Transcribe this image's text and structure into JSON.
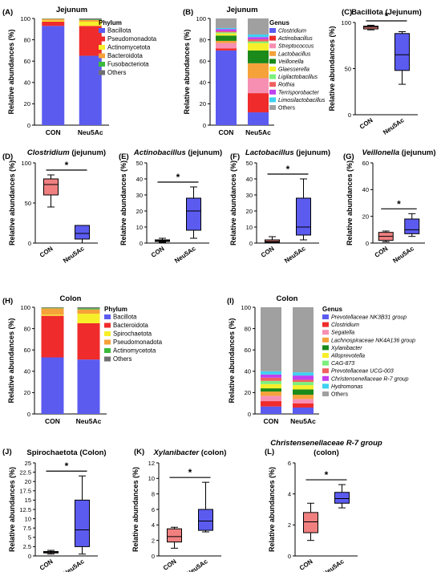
{
  "colors": {
    "phylum": {
      "Bacillota": "#5b5bf0",
      "Pseudomonadota": "#ef2b2b",
      "Actinomycetota": "#f7ef2a",
      "Bacteroidota": "#f5a23a",
      "Fusobacteriota": "#3cba3c",
      "Others": "#707070",
      "Spirochaetota": "#f7ef2a"
    },
    "genus": [
      "#5b5bf0",
      "#ef2b2b",
      "#f78fb3",
      "#f5a23a",
      "#1a8a1a",
      "#f7ef2a",
      "#7cf07c",
      "#f06060",
      "#c040f0",
      "#40d0f0",
      "#a0a0a0"
    ],
    "con_box": "#f08080",
    "neu_box": "#5b5bf0"
  },
  "chart_data": [
    {
      "id": "A",
      "type": "bar",
      "panel_label": "(A)",
      "title": "Jejunum",
      "ylabel": "Relative abundances (%)",
      "ylim": [
        0,
        100
      ],
      "yticks": [
        "0",
        "20",
        "40",
        "60",
        "80",
        "100"
      ],
      "categories": [
        "CON",
        "Neu5Ac"
      ],
      "legend_title": "Phylum",
      "series": [
        {
          "name": "Bacillota",
          "color_key": "Bacillota",
          "values": [
            93,
            65
          ]
        },
        {
          "name": "Pseudomonadota",
          "color_key": "Pseudomonadota",
          "values": [
            4,
            28
          ]
        },
        {
          "name": "Actinomycetota",
          "color_key": "Actinomycetota",
          "values": [
            1,
            4
          ]
        },
        {
          "name": "Bacteroidota",
          "color_key": "Bacteroidota",
          "values": [
            1.5,
            1.5
          ]
        },
        {
          "name": "Fusobacteriota",
          "color_key": "Fusobacteriota",
          "values": [
            0.2,
            0.5
          ]
        },
        {
          "name": "Others",
          "color_key": "Others",
          "values": [
            0.3,
            1
          ]
        }
      ]
    },
    {
      "id": "B",
      "type": "bar",
      "panel_label": "(B)",
      "title": "Jejunum",
      "ylabel": "Relative abundances (%)",
      "ylim": [
        0,
        100
      ],
      "yticks": [
        "0",
        "20",
        "40",
        "60",
        "80",
        "100"
      ],
      "categories": [
        "CON",
        "Neu5Ac"
      ],
      "legend_title": "Genus",
      "series": [
        {
          "name": "Clostridium",
          "values": [
            70,
            12
          ]
        },
        {
          "name": "Actinobacillus",
          "values": [
            2,
            18
          ]
        },
        {
          "name": "Streptococcus",
          "values": [
            5,
            14
          ]
        },
        {
          "name": "Lactobacillus",
          "values": [
            2,
            14
          ]
        },
        {
          "name": "Veillonella",
          "values": [
            5,
            12
          ]
        },
        {
          "name": "Glaesserella",
          "values": [
            2,
            7
          ]
        },
        {
          "name": "Ligilactobacillus",
          "values": [
            1,
            1.5
          ]
        },
        {
          "name": "Rothia",
          "values": [
            1,
            2
          ]
        },
        {
          "name": "Terrisporobacter",
          "values": [
            2,
            2
          ]
        },
        {
          "name": "Limosilactobacillus",
          "values": [
            1,
            2.5
          ]
        },
        {
          "name": "Others",
          "values": [
            9,
            15
          ]
        }
      ]
    },
    {
      "id": "C",
      "type": "box",
      "panel_label": "(C)",
      "title": "Bacillota (Jejunum)",
      "ylabel": "Relative abundances (%)",
      "ylim": [
        0,
        100
      ],
      "yticks": [
        "0",
        "50",
        "100"
      ],
      "categories": [
        "CON",
        "Neu5Ac"
      ],
      "significance": "*",
      "boxes": [
        {
          "min": 92,
          "q1": 93,
          "median": 95,
          "q3": 96,
          "max": 97
        },
        {
          "min": 33,
          "q1": 48,
          "median": 65,
          "q3": 88,
          "max": 90
        }
      ]
    },
    {
      "id": "D",
      "type": "box",
      "panel_label": "(D)",
      "title": "Clostridium (jejunum)",
      "ylabel": "Relative abundances (%)",
      "ylim": [
        0,
        100
      ],
      "yticks": [
        "0",
        "50",
        "100"
      ],
      "categories": [
        "CON",
        "Neu5Ac"
      ],
      "significance": "*",
      "boxes": [
        {
          "min": 45,
          "q1": 60,
          "median": 73,
          "q3": 80,
          "max": 85
        },
        {
          "min": 0,
          "q1": 5,
          "median": 12,
          "q3": 22,
          "max": 22
        }
      ]
    },
    {
      "id": "E",
      "type": "box",
      "panel_label": "(E)",
      "title": "Actinobacillus (jejunum)",
      "ylabel": "Relative abundances (%)",
      "ylim": [
        0,
        50
      ],
      "yticks": [
        "0",
        "10",
        "20",
        "30",
        "40",
        "50"
      ],
      "categories": [
        "CON",
        "Neu5Ac"
      ],
      "significance": "*",
      "boxes": [
        {
          "min": 0.5,
          "q1": 1,
          "median": 1.5,
          "q3": 2,
          "max": 3
        },
        {
          "min": 3,
          "q1": 8,
          "median": 20,
          "q3": 28,
          "max": 35
        }
      ]
    },
    {
      "id": "F",
      "type": "box",
      "panel_label": "(F)",
      "title": "Lactobacillus (jejunum)",
      "ylabel": "Relative abundances (%)",
      "ylim": [
        0,
        50
      ],
      "yticks": [
        "0",
        "10",
        "20",
        "30",
        "40",
        "50"
      ],
      "categories": [
        "CON",
        "Neu5Ac"
      ],
      "significance": "*",
      "boxes": [
        {
          "min": 0,
          "q1": 0.5,
          "median": 1,
          "q3": 2,
          "max": 4
        },
        {
          "min": 2,
          "q1": 5,
          "median": 10,
          "q3": 28,
          "max": 40
        }
      ]
    },
    {
      "id": "G",
      "type": "box",
      "panel_label": "(G)",
      "title": "Veillonella (jejunum)",
      "ylabel": "Relative abundances (%)",
      "ylim": [
        0,
        60
      ],
      "yticks": [
        "0",
        "20",
        "40",
        "60"
      ],
      "categories": [
        "CON",
        "Neu5Ac"
      ],
      "significance": "*",
      "boxes": [
        {
          "min": 1,
          "q1": 2,
          "median": 5,
          "q3": 8,
          "max": 9
        },
        {
          "min": 5,
          "q1": 7,
          "median": 10,
          "q3": 18,
          "max": 22
        }
      ]
    },
    {
      "id": "H",
      "type": "bar",
      "panel_label": "(H)",
      "title": "Colon",
      "ylabel": "Relative abundances (%)",
      "ylim": [
        0,
        100
      ],
      "yticks": [
        "0",
        "20",
        "40",
        "60",
        "80",
        "100"
      ],
      "categories": [
        "CON",
        "Neu5Ac"
      ],
      "legend_title": "Phylum",
      "series": [
        {
          "name": "Bacillota",
          "color_key": "Bacillota",
          "values": [
            53,
            51
          ]
        },
        {
          "name": "Bacteroidota",
          "color_key": "Pseudomonadota",
          "values": [
            39,
            34
          ]
        },
        {
          "name": "Spirochaetota",
          "color_key": "Spirochaetota",
          "values": [
            1,
            9
          ]
        },
        {
          "name": "Pseudomonadota",
          "color_key": "Bacteroidota",
          "values": [
            6,
            4
          ]
        },
        {
          "name": "Actinomycetota",
          "color_key": "Fusobacteriota",
          "values": [
            0.5,
            1
          ]
        },
        {
          "name": "Others",
          "color_key": "Others",
          "values": [
            0.5,
            1
          ]
        }
      ]
    },
    {
      "id": "I",
      "type": "bar",
      "panel_label": "(I)",
      "title": "Colon",
      "ylabel": "Relative abundances (%)",
      "ylim": [
        0,
        100
      ],
      "yticks": [
        "0",
        "20",
        "40",
        "60",
        "80",
        "100"
      ],
      "categories": [
        "CON",
        "Neu5Ac"
      ],
      "legend_title": "Genus",
      "series": [
        {
          "name": "Prevotellaceae NK3B31 group",
          "values": [
            7,
            6
          ]
        },
        {
          "name": "Clostridium",
          "values": [
            5,
            4
          ]
        },
        {
          "name": "Segatella",
          "values": [
            5,
            4
          ]
        },
        {
          "name": "Lachnospiraceae NK4A136 group",
          "values": [
            4,
            4
          ]
        },
        {
          "name": "Xylanibacter",
          "values": [
            3,
            5
          ]
        },
        {
          "name": "Alloprevotella",
          "values": [
            4,
            4
          ]
        },
        {
          "name": "CAG-873",
          "values": [
            3,
            3
          ]
        },
        {
          "name": "Prevotellaceae UCG-003",
          "values": [
            3,
            2
          ]
        },
        {
          "name": "Christensenellaceae R-7 group",
          "values": [
            3,
            4
          ]
        },
        {
          "name": "Hydromonas",
          "values": [
            3,
            3
          ]
        },
        {
          "name": "Others",
          "values": [
            60,
            61
          ]
        }
      ]
    },
    {
      "id": "J",
      "type": "box",
      "panel_label": "(J)",
      "title": "Spirochaetota (Colon)",
      "ylabel": "Relative abundances (%)",
      "ylim": [
        0,
        25
      ],
      "yticks": [
        "0",
        "2.5",
        "5",
        "7.5",
        "10",
        "12.5",
        "15",
        "17.5",
        "20",
        "22.5",
        "25"
      ],
      "categories": [
        "CON",
        "Neu5Ac"
      ],
      "significance": "*",
      "boxes": [
        {
          "min": 0.5,
          "q1": 0.8,
          "median": 1,
          "q3": 1.2,
          "max": 1.5
        },
        {
          "min": 0.5,
          "q1": 2.5,
          "median": 7,
          "q3": 15,
          "max": 21.5
        }
      ]
    },
    {
      "id": "K",
      "type": "box",
      "panel_label": "(K)",
      "title": "Xylanibacter (colon)",
      "ylabel": "Relative abundances (%)",
      "ylim": [
        0,
        12
      ],
      "yticks": [
        "0",
        "2",
        "4",
        "6",
        "8",
        "10",
        "12"
      ],
      "categories": [
        "CON",
        "Neu5Ac"
      ],
      "significance": "*",
      "boxes": [
        {
          "min": 1,
          "q1": 1.8,
          "median": 2.5,
          "q3": 3.5,
          "max": 3.7
        },
        {
          "min": 3.1,
          "q1": 3.3,
          "median": 4.5,
          "q3": 6,
          "max": 9.5
        }
      ]
    },
    {
      "id": "L",
      "type": "box",
      "panel_label": "(L)",
      "title": "Christensenellaceae R-7 group",
      "title2": "(colon)",
      "ylabel": "Relative abundances (%)",
      "ylim": [
        0,
        6
      ],
      "yticks": [
        "0",
        "2",
        "4",
        "6"
      ],
      "categories": [
        "CON",
        "Neu5Ac"
      ],
      "significance": "*",
      "boxes": [
        {
          "min": 1,
          "q1": 1.5,
          "median": 2.2,
          "q3": 2.8,
          "max": 3.4
        },
        {
          "min": 3.1,
          "q1": 3.4,
          "median": 3.7,
          "q3": 4.1,
          "max": 4.6
        }
      ]
    }
  ]
}
